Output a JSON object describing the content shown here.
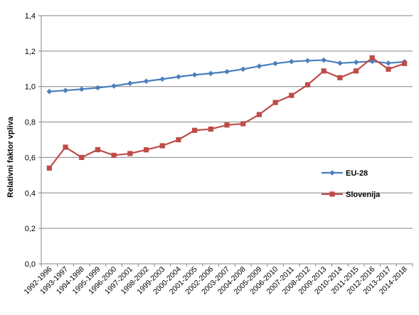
{
  "chart_data": {
    "type": "line",
    "title": "",
    "xlabel": "",
    "ylabel": "Relativni faktor vpliva",
    "ylim": [
      0,
      1.4
    ],
    "yticks": [
      "0,0",
      "0,2",
      "0,4",
      "0,6",
      "0,8",
      "1,0",
      "1,2",
      "1,4"
    ],
    "grid": "horizontal",
    "legend_position": "right",
    "categories": [
      "1992-1996",
      "1993-1997",
      "1994-1998",
      "1995-1999",
      "1996-2000",
      "1997-2001",
      "1998-2002",
      "1999-2003",
      "2000-2004",
      "2001-2005",
      "2002-2006",
      "2003-2007",
      "2004-2008",
      "2005-2009",
      "2006-2010",
      "2007-2011",
      "2008-2012",
      "2009-2013",
      "2010-2014",
      "2011-2015",
      "2012-2016",
      "2013-2017",
      "2014-2018"
    ],
    "series": [
      {
        "name": "EU-28",
        "color": "#4a7ebb",
        "marker": "diamond",
        "values": [
          0.972,
          0.978,
          0.985,
          0.993,
          1.003,
          1.018,
          1.03,
          1.042,
          1.055,
          1.066,
          1.074,
          1.084,
          1.098,
          1.115,
          1.13,
          1.141,
          1.146,
          1.149,
          1.132,
          1.137,
          1.142,
          1.132,
          1.14
        ]
      },
      {
        "name": "Slovenija",
        "color": "#be4b48",
        "marker": "square",
        "values": [
          0.54,
          0.658,
          0.6,
          0.644,
          0.612,
          0.622,
          0.643,
          0.666,
          0.7,
          0.753,
          0.76,
          0.783,
          0.79,
          0.842,
          0.91,
          0.95,
          1.01,
          1.088,
          1.05,
          1.088,
          1.162,
          1.098,
          1.13
        ]
      }
    ]
  }
}
